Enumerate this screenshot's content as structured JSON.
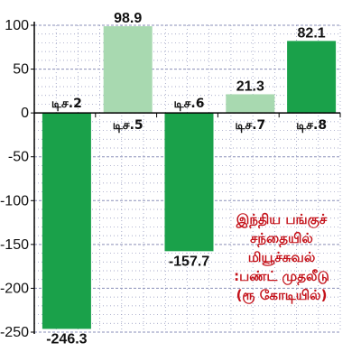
{
  "chart_data": {
    "type": "bar",
    "categories": [
      "டிச.2",
      "டிச.5",
      "டிச.6",
      "டிச.7",
      "டிச.8"
    ],
    "values": [
      -246.3,
      98.9,
      -157.7,
      21.3,
      82.1
    ],
    "value_labels": [
      "-246.3",
      "98.9",
      "-157.7",
      "21.3",
      "82.1"
    ],
    "y_ticks": [
      100,
      50,
      0,
      -50,
      -100,
      -150,
      -200,
      -250
    ],
    "y_tick_labels": [
      "100",
      "50",
      "0",
      "-50",
      "-100",
      "-150",
      "-200",
      "-250"
    ],
    "ylim": [
      -250,
      100
    ],
    "grid": true,
    "annotation": [
      "இந்திய பங்குச்",
      "சந்தையில்",
      "மியூச்சுவல்",
      ":பண்ட் முதலீடு",
      "(ரூ கோடியில்)"
    ],
    "colors": {
      "positive_dark": "#1aa14a",
      "positive_light": "#a8d9b0",
      "negative": "#1aa14a",
      "annotation": "#c4121a",
      "grid": "#8a8fb8"
    },
    "bar_shades": [
      "dark",
      "light",
      "dark",
      "light",
      "dark"
    ]
  }
}
